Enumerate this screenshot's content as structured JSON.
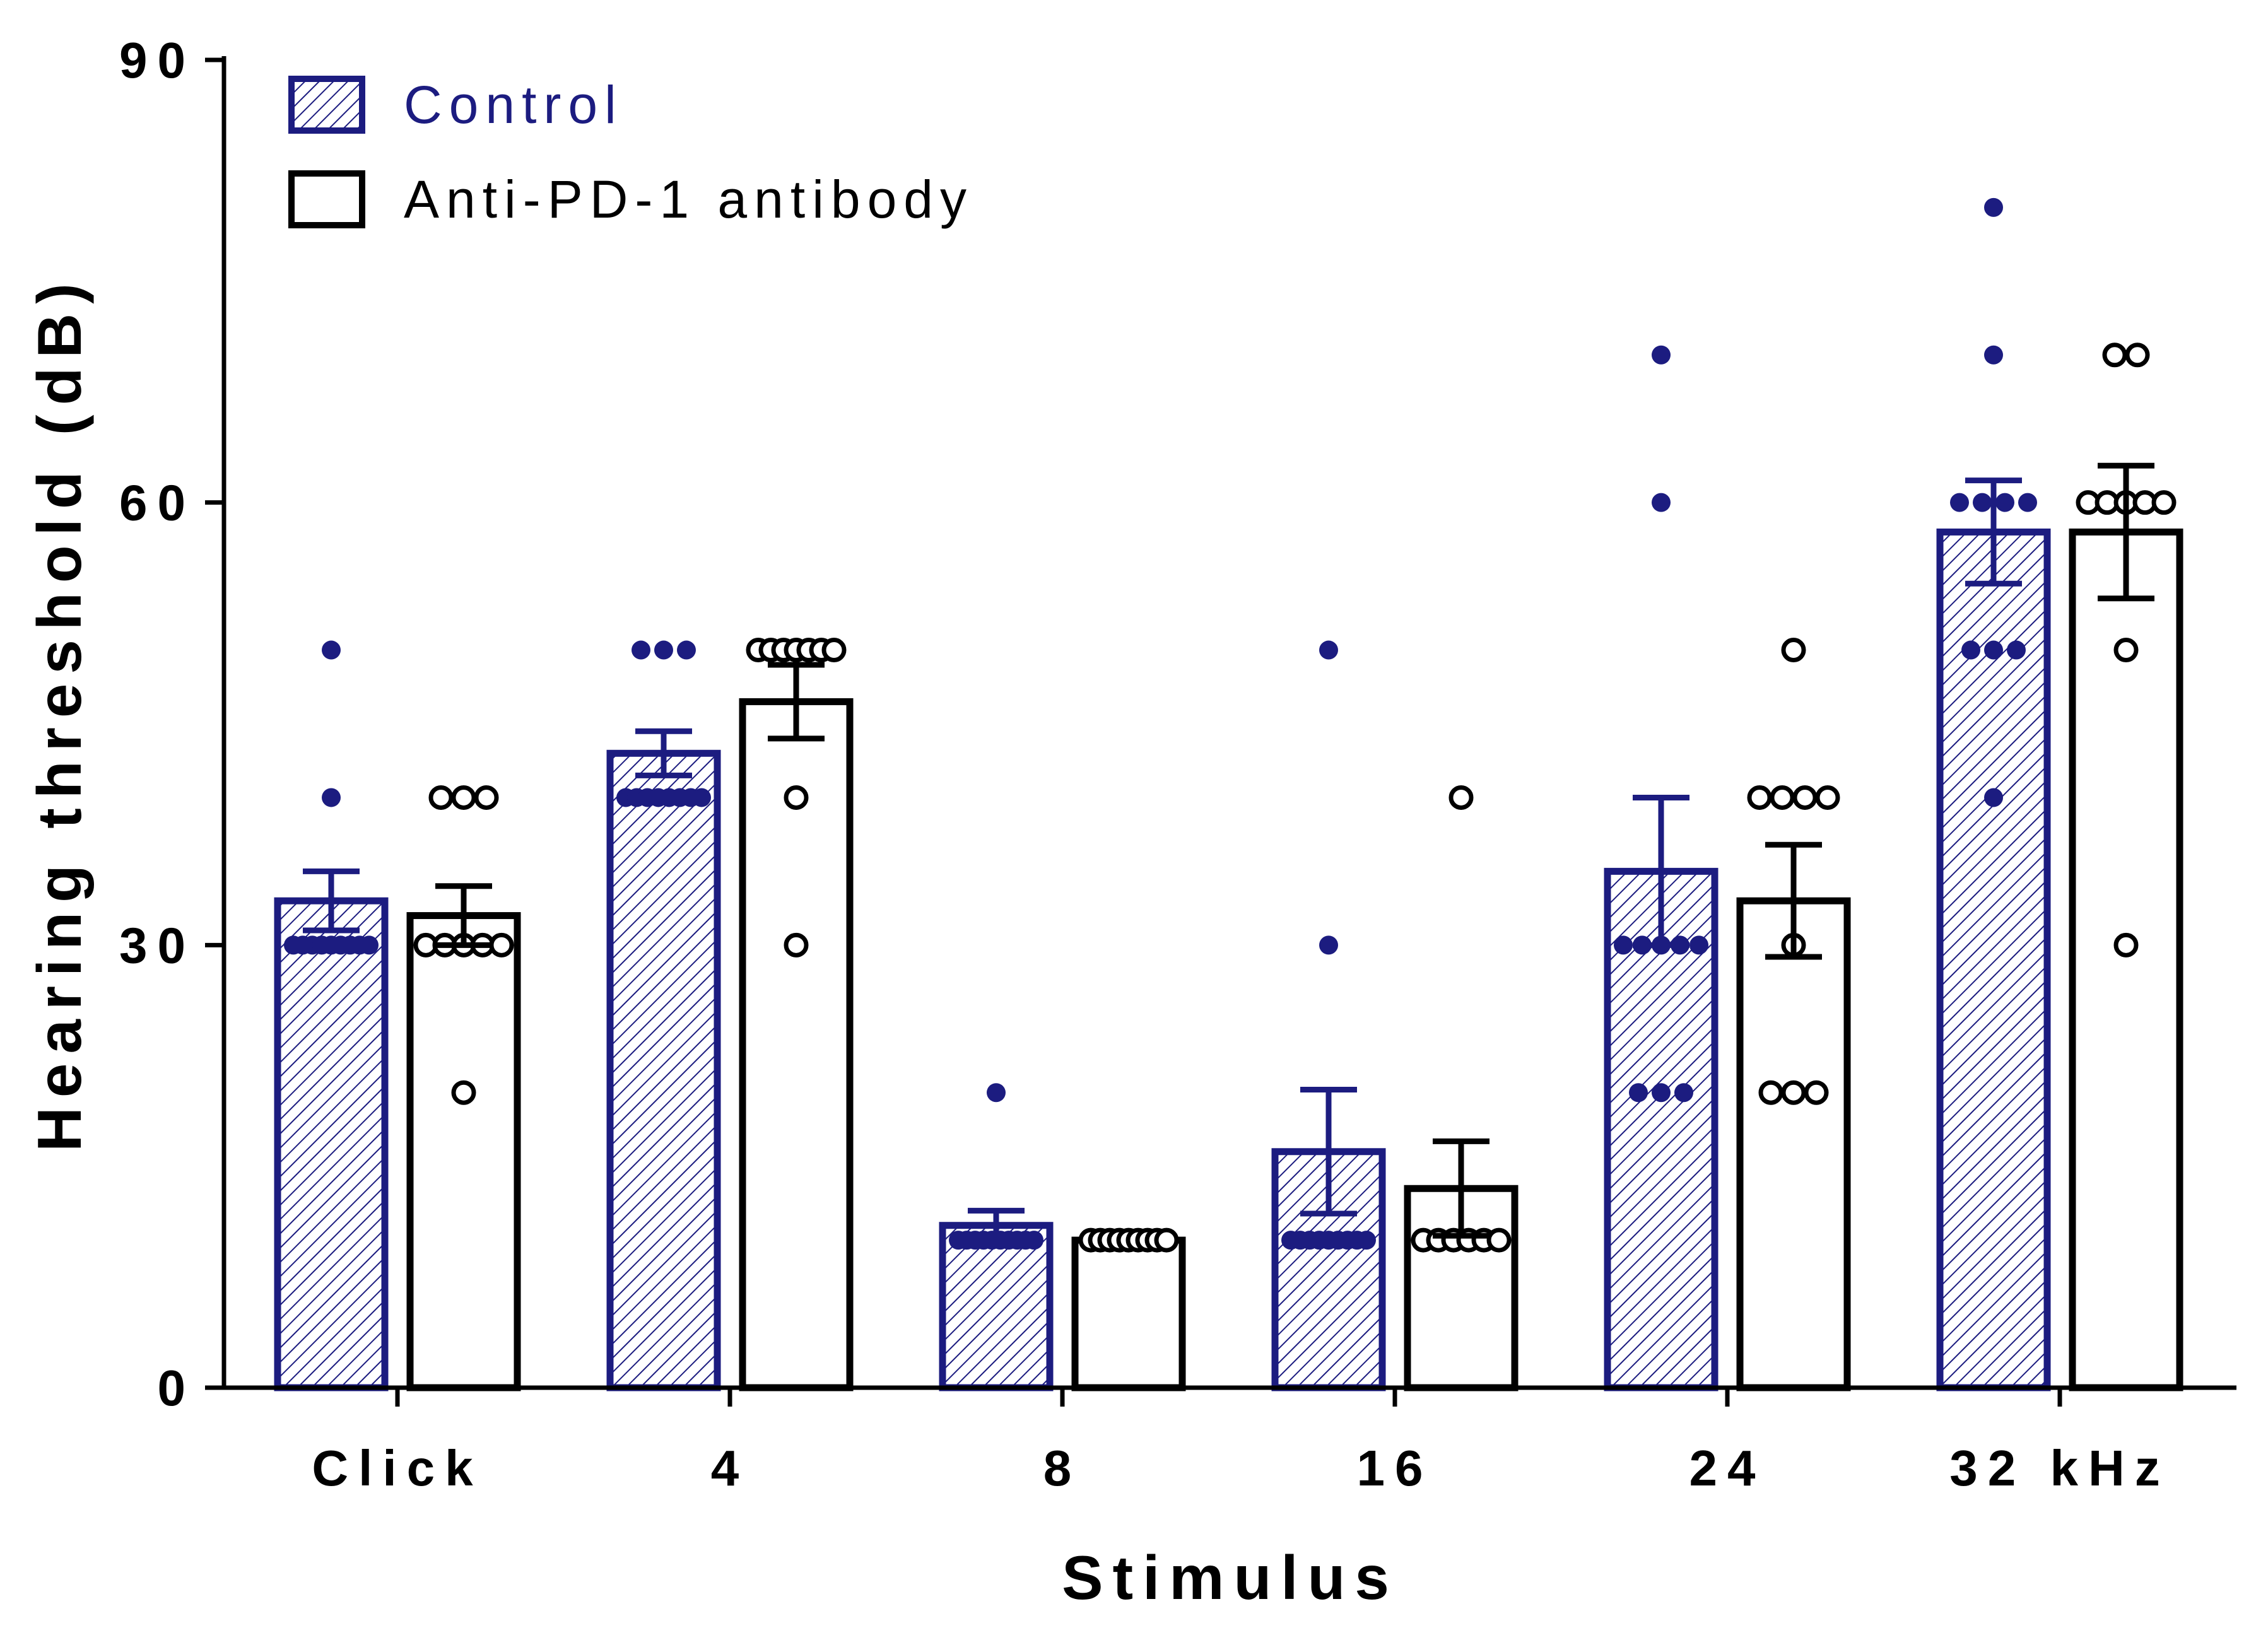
{
  "chart_data": {
    "type": "bar",
    "title": "",
    "xlabel": "Stimulus",
    "ylabel": "Hearing threshold (dB)",
    "ylim": [
      0,
      90
    ],
    "yticks": [
      0,
      30,
      60,
      90
    ],
    "grid": false,
    "legend_position": "top-left",
    "categories": [
      "Click",
      "4",
      "8",
      "16",
      "24",
      "32 kHz"
    ],
    "series": [
      {
        "name": "Control",
        "style": "hatched",
        "color": "#1c1c80",
        "values": [
          33.0,
          43.0,
          11.0,
          16.0,
          35.0,
          58.0
        ],
        "errors": [
          2.0,
          1.5,
          1.0,
          4.2,
          5.0,
          3.5
        ],
        "points": [
          [
            50,
            40,
            30,
            30,
            30,
            30,
            30,
            30,
            30,
            30,
            30
          ],
          [
            50,
            50,
            50,
            40,
            40,
            40,
            40,
            40,
            40,
            40,
            40
          ],
          [
            20,
            10,
            10,
            10,
            10,
            10,
            10,
            10,
            10,
            10,
            10
          ],
          [
            50,
            30,
            10,
            10,
            10,
            10,
            10,
            10,
            10,
            10,
            10
          ],
          [
            70,
            60,
            30,
            30,
            30,
            30,
            30,
            20,
            20,
            20
          ],
          [
            80,
            70,
            60,
            60,
            60,
            60,
            50,
            50,
            50,
            40
          ]
        ]
      },
      {
        "name": "Anti-PD-1 antibody",
        "style": "open",
        "color": "#000000",
        "values": [
          32.0,
          46.5,
          10.0,
          13.5,
          33.0,
          58.0
        ],
        "errors": [
          2.0,
          2.5,
          0.0,
          3.2,
          3.8,
          4.5
        ],
        "points": [
          [
            40,
            40,
            40,
            30,
            30,
            30,
            30,
            30,
            20
          ],
          [
            50,
            50,
            50,
            50,
            50,
            50,
            50,
            40,
            30
          ],
          [
            10,
            10,
            10,
            10,
            10,
            10,
            10,
            10,
            10
          ],
          [
            40,
            10,
            10,
            10,
            10,
            10,
            10
          ],
          [
            50,
            40,
            40,
            40,
            40,
            30,
            20,
            20,
            20
          ],
          [
            70,
            70,
            60,
            60,
            60,
            60,
            60,
            50,
            30
          ]
        ]
      }
    ]
  }
}
